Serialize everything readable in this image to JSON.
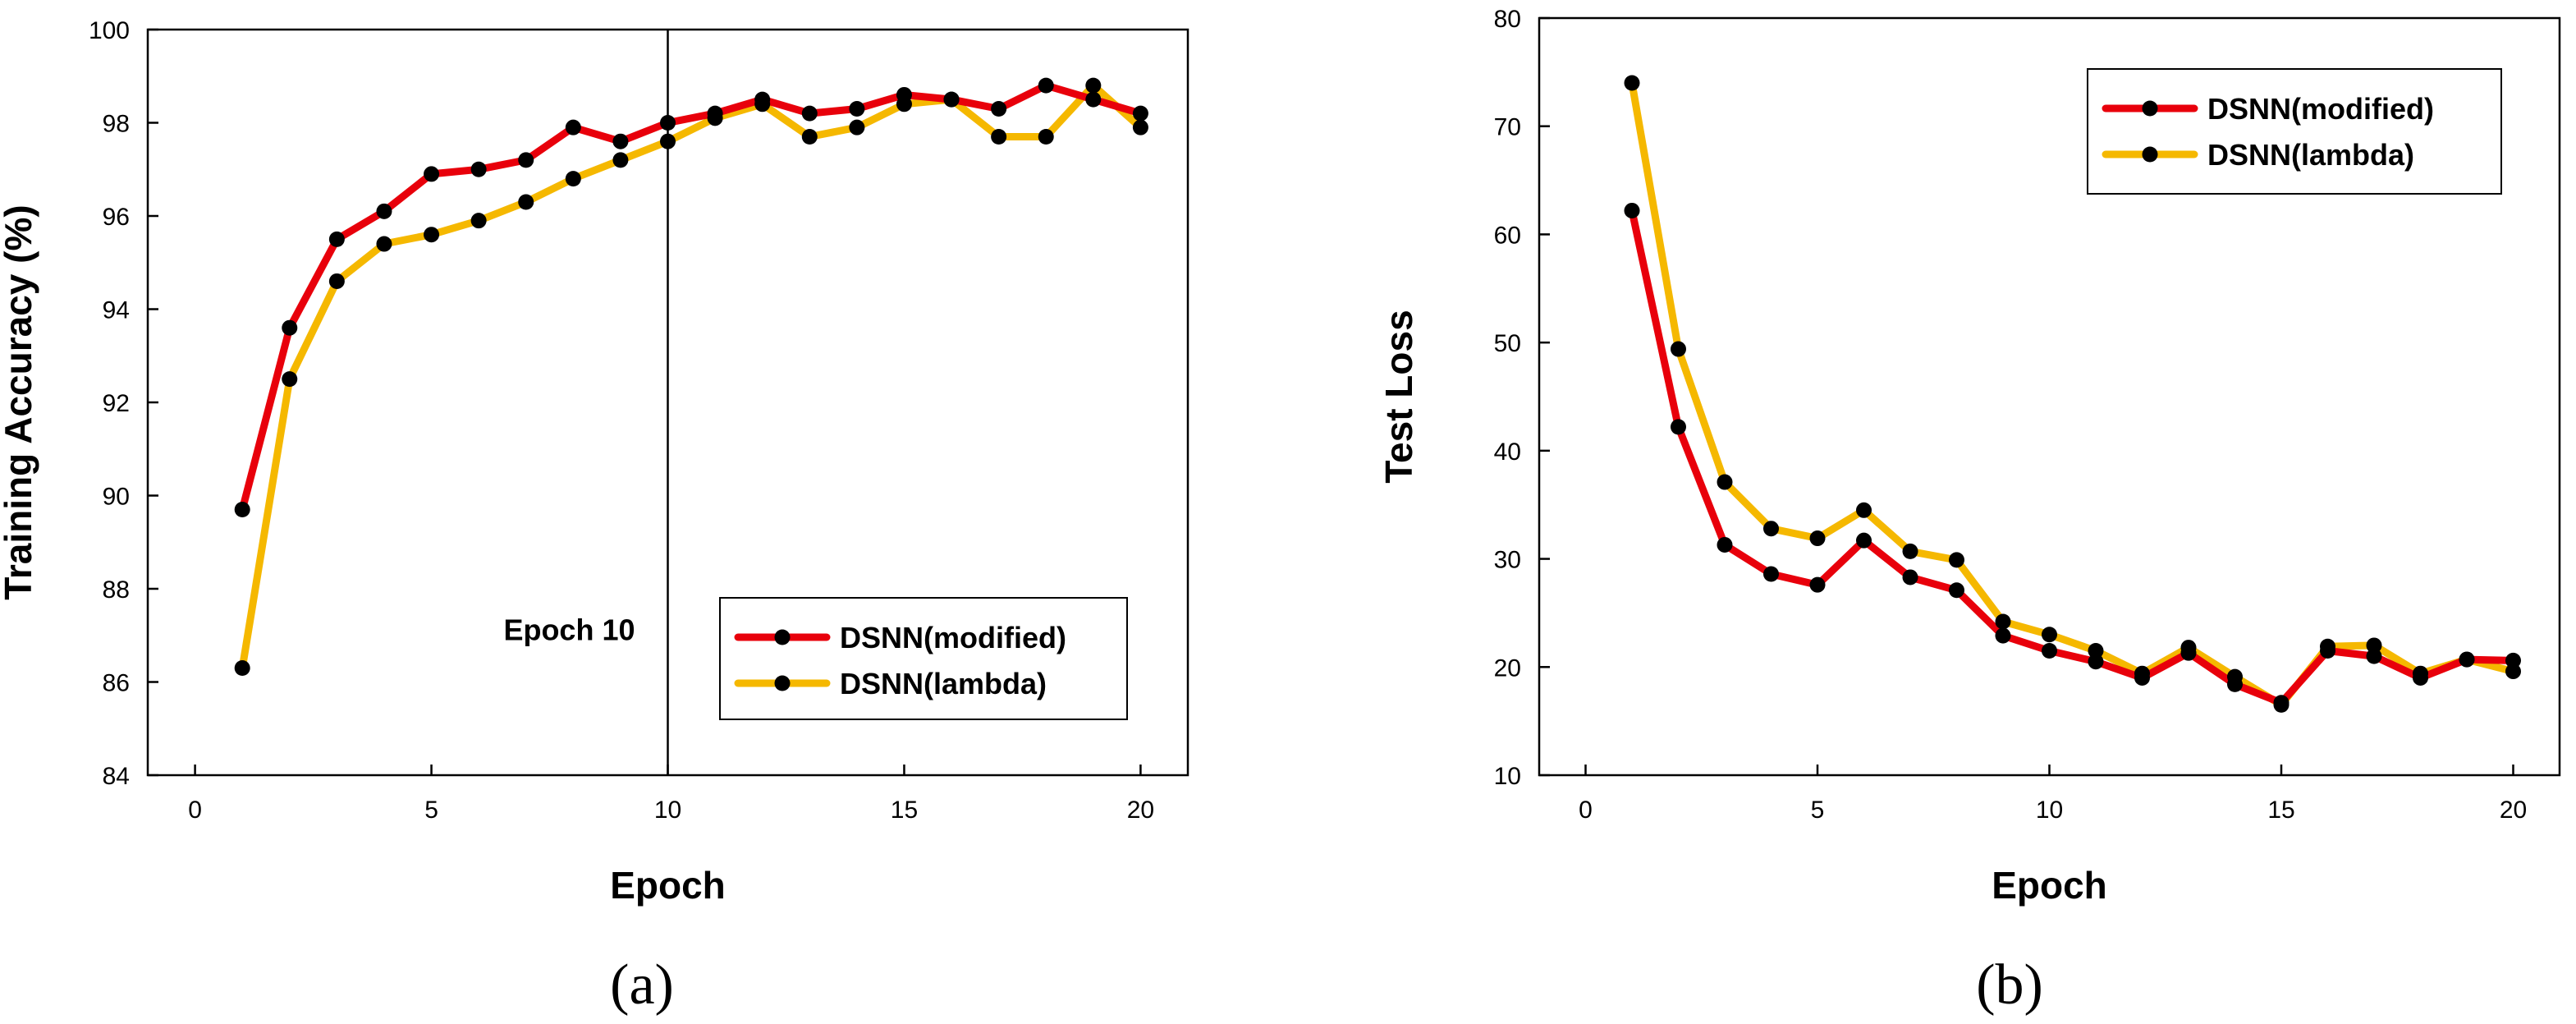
{
  "chart_data": [
    {
      "type": "line",
      "panel_label": "(a)",
      "xlabel": "Epoch",
      "ylabel": "Training Accuracy (%)",
      "xlim": [
        -1,
        21
      ],
      "ylim": [
        84,
        100
      ],
      "xticks": [
        0,
        5,
        10,
        15,
        20
      ],
      "yticks": [
        84,
        86,
        88,
        90,
        92,
        94,
        96,
        98,
        100
      ],
      "vline": {
        "x": 10,
        "label": "Epoch 10"
      },
      "legend_position": "lower-right",
      "x": [
        1,
        2,
        3,
        4,
        5,
        6,
        7,
        8,
        9,
        10,
        11,
        12,
        13,
        14,
        15,
        16,
        17,
        18,
        19,
        20
      ],
      "series": [
        {
          "name": "DSNN(modified)",
          "color": "#e8000b",
          "values": [
            89.7,
            93.6,
            95.5,
            96.1,
            96.9,
            97.0,
            97.2,
            97.9,
            97.6,
            98.0,
            98.2,
            98.5,
            98.2,
            98.3,
            98.6,
            98.5,
            98.3,
            98.8,
            98.5,
            98.2
          ]
        },
        {
          "name": "DSNN(lambda)",
          "color": "#f5b800",
          "values": [
            86.3,
            92.5,
            94.6,
            95.4,
            95.6,
            95.9,
            96.3,
            96.8,
            97.2,
            97.6,
            98.1,
            98.4,
            97.7,
            97.9,
            98.4,
            98.5,
            97.7,
            97.7,
            98.8,
            97.9
          ]
        }
      ]
    },
    {
      "type": "line",
      "panel_label": "(b)",
      "xlabel": "Epoch",
      "ylabel": "Test Loss",
      "xlim": [
        -1,
        21
      ],
      "ylim": [
        10,
        80
      ],
      "xticks": [
        0,
        5,
        10,
        15,
        20
      ],
      "yticks": [
        10,
        20,
        30,
        40,
        50,
        60,
        70,
        80
      ],
      "legend_position": "top-right",
      "x": [
        1,
        2,
        3,
        4,
        5,
        6,
        7,
        8,
        9,
        10,
        11,
        12,
        13,
        14,
        15,
        16,
        17,
        18,
        19,
        20
      ],
      "series": [
        {
          "name": "DSNN(modified)",
          "color": "#e8000b",
          "values": [
            62.2,
            42.2,
            31.3,
            28.6,
            27.6,
            31.7,
            28.3,
            27.1,
            22.9,
            21.5,
            20.5,
            19.0,
            21.3,
            18.4,
            16.7,
            21.5,
            21.0,
            19.0,
            20.7,
            20.6
          ]
        },
        {
          "name": "DSNN(lambda)",
          "color": "#f5b800",
          "values": [
            74.0,
            49.4,
            37.1,
            32.8,
            31.9,
            34.5,
            30.7,
            29.9,
            24.2,
            23.0,
            21.5,
            19.4,
            21.8,
            19.1,
            16.5,
            21.9,
            22.0,
            19.4,
            20.7,
            19.6
          ]
        }
      ]
    }
  ]
}
